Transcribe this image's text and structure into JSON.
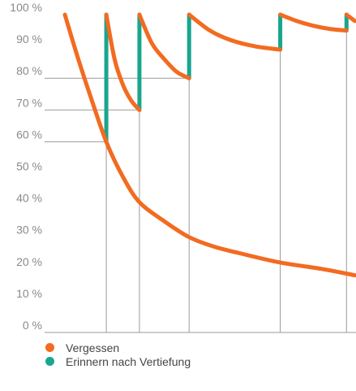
{
  "chart_data": {
    "type": "line",
    "title": "",
    "xlabel": "",
    "ylabel": "",
    "ylim": [
      0,
      100
    ],
    "y_ticks": [
      0,
      10,
      20,
      30,
      40,
      50,
      60,
      70,
      80,
      90,
      100
    ],
    "y_tick_labels": [
      "0 %",
      "10 %",
      "20 %",
      "30 %",
      "40 %",
      "50 %",
      "60 %",
      "70 %",
      "80 %",
      "90 %",
      "100 %"
    ],
    "grid": false,
    "legend_position": "bottom-left",
    "series": [
      {
        "name": "Vergessen",
        "color": "#f26b21",
        "role": "forgetting",
        "x": [
          0,
          0.3,
          0.6,
          1.0,
          1.4,
          1.8,
          2.4,
          3.0,
          3.6,
          4.2,
          5.2,
          6.2,
          7.0
        ],
        "y": [
          100,
          87,
          75,
          60,
          49,
          41,
          35,
          30,
          27,
          25,
          22,
          20,
          18
        ]
      },
      {
        "name": "Erinnern nach Vertiefung",
        "color": "#1aa58e",
        "role": "boosts",
        "points": [
          [
            1.0,
            60
          ],
          [
            1.0,
            100
          ],
          [
            1.8,
            70
          ],
          [
            1.8,
            100
          ],
          [
            3.0,
            80
          ],
          [
            3.0,
            100
          ],
          [
            5.2,
            89
          ],
          [
            5.2,
            100
          ],
          [
            6.8,
            95
          ],
          [
            6.8,
            100
          ]
        ]
      }
    ],
    "relearning_curves": [
      {
        "x": [
          1.0,
          1.2,
          1.4,
          1.6,
          1.8
        ],
        "y": [
          100,
          86,
          78,
          73,
          70
        ]
      },
      {
        "x": [
          1.8,
          2.1,
          2.4,
          2.7,
          3.0
        ],
        "y": [
          100,
          91,
          86,
          82,
          80
        ]
      },
      {
        "x": [
          3.0,
          3.5,
          4.0,
          4.6,
          5.2
        ],
        "y": [
          100,
          95,
          92,
          90,
          89
        ]
      },
      {
        "x": [
          5.2,
          5.6,
          6.0,
          6.4,
          6.8
        ],
        "y": [
          100,
          98,
          96.5,
          95.5,
          95
        ]
      },
      {
        "x": [
          6.8,
          6.9,
          7.0
        ],
        "y": [
          100,
          99,
          98
        ]
      }
    ],
    "reference_lines": [
      {
        "y": 60,
        "x_end": 1.0
      },
      {
        "y": 70,
        "x_end": 1.8
      },
      {
        "y": 80,
        "x_end": 3.0
      }
    ],
    "vertical_lines": [
      1.0,
      1.8,
      3.0,
      5.2,
      6.8
    ]
  }
}
